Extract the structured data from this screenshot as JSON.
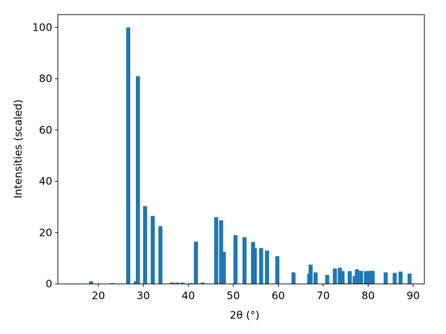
{
  "chart_data": {
    "type": "bar",
    "xlabel": "2θ (°)",
    "ylabel": "Intensities (scaled)",
    "x": [
      18.4,
      23.1,
      26.65,
      28.35,
      28.8,
      30.4,
      32.1,
      33.8,
      36.4,
      37.5,
      38.7,
      40.6,
      41.7,
      43.2,
      46.2,
      47.3,
      47.9,
      50.5,
      52.5,
      54.4,
      54.8,
      56.2,
      57.5,
      59.8,
      63.4,
      66.9,
      67.2,
      68.3,
      70.9,
      72.6,
      73.7,
      74.3,
      75.9,
      77.0,
      77.5,
      78.4,
      79.5,
      80.2,
      81.0,
      83.9,
      85.9,
      87.2,
      89.2
    ],
    "values": [
      1,
      0.3,
      100,
      1,
      81,
      30.3,
      26.5,
      22.5,
      0.5,
      0.5,
      0.5,
      0.3,
      16.5,
      0.5,
      26,
      24.8,
      12.5,
      19,
      18.2,
      16.3,
      14,
      14,
      13,
      10.8,
      4.5,
      4,
      7.5,
      4.5,
      3.5,
      6,
      6.3,
      5,
      5,
      3,
      5.7,
      5.1,
      5,
      5.1,
      5.1,
      4.5,
      4.3,
      4.8,
      4
    ],
    "color": "#1f77b4",
    "xlim": [
      11,
      92.5
    ],
    "xticks": [
      20,
      30,
      40,
      50,
      60,
      70,
      80,
      90
    ],
    "ylim": [
      0,
      105
    ],
    "yticks": [
      0,
      20,
      40,
      60,
      80,
      100
    ]
  }
}
